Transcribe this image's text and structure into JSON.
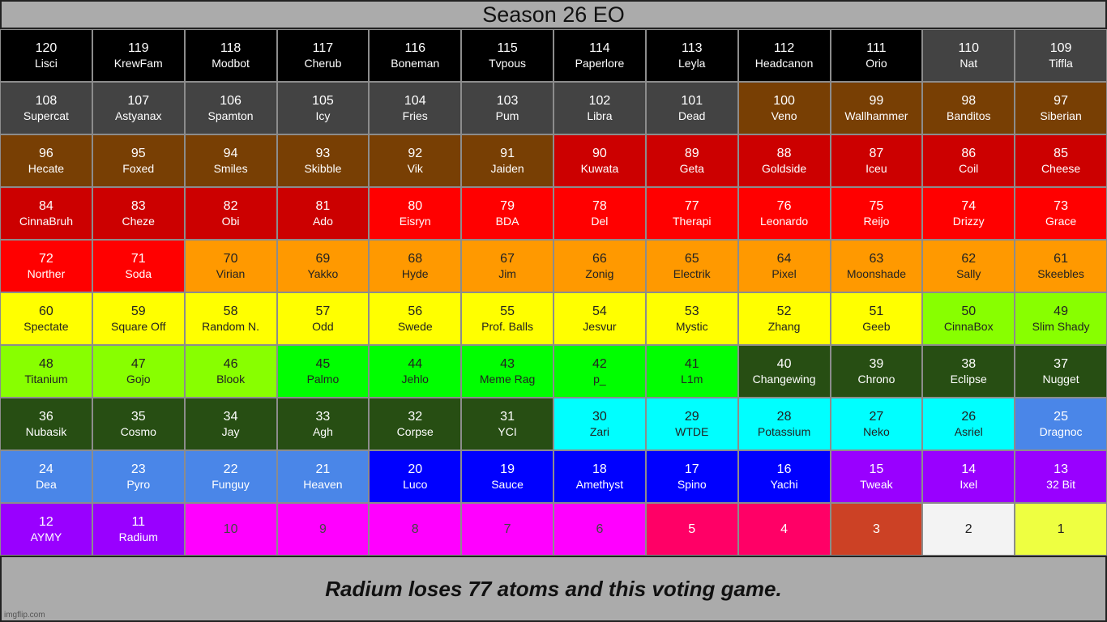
{
  "title": "Season 26 EO",
  "footer": "Radium loses 77 atoms and this voting game.",
  "watermark": "imgflip.com",
  "colors": {
    "black": "#000000",
    "gray": "#434343",
    "brown": "#783f04",
    "darkred": "#cc0000",
    "red": "#ff0000",
    "orange": "#ff9900",
    "yellow": "#ffff00",
    "lime": "#88ff00",
    "green": "#00ff00",
    "darkgreen": "#274e13",
    "cyan": "#00ffff",
    "cornflower": "#4a86e8",
    "blue": "#0000ff",
    "purple": "#9900ff",
    "magenta": "#ff00ff",
    "crimson": "#ff0066",
    "rust": "#cc4125",
    "white": "#f3f3f3",
    "paleyellow": "#eeff41"
  },
  "cells": [
    {
      "num": "120",
      "name": "Lisci",
      "c": "black"
    },
    {
      "num": "119",
      "name": "KrewFam",
      "c": "black"
    },
    {
      "num": "118",
      "name": "Modbot",
      "c": "black"
    },
    {
      "num": "117",
      "name": "Cherub",
      "c": "black"
    },
    {
      "num": "116",
      "name": "Boneman",
      "c": "black"
    },
    {
      "num": "115",
      "name": "Tvpous",
      "c": "black"
    },
    {
      "num": "114",
      "name": "Paperlore",
      "c": "black"
    },
    {
      "num": "113",
      "name": "Leyla",
      "c": "black"
    },
    {
      "num": "112",
      "name": "Headcanon",
      "c": "black"
    },
    {
      "num": "111",
      "name": "Orio",
      "c": "black"
    },
    {
      "num": "110",
      "name": "Nat",
      "c": "gray"
    },
    {
      "num": "109",
      "name": "Tiffla",
      "c": "gray"
    },
    {
      "num": "108",
      "name": "Supercat",
      "c": "gray"
    },
    {
      "num": "107",
      "name": "Astyanax",
      "c": "gray"
    },
    {
      "num": "106",
      "name": "Spamton",
      "c": "gray"
    },
    {
      "num": "105",
      "name": "Icy",
      "c": "gray"
    },
    {
      "num": "104",
      "name": "Fries",
      "c": "gray"
    },
    {
      "num": "103",
      "name": "Pum",
      "c": "gray"
    },
    {
      "num": "102",
      "name": "Libra",
      "c": "gray"
    },
    {
      "num": "101",
      "name": "Dead",
      "c": "gray"
    },
    {
      "num": "100",
      "name": "Veno",
      "c": "brown"
    },
    {
      "num": "99",
      "name": "Wallhammer",
      "c": "brown"
    },
    {
      "num": "98",
      "name": "Banditos",
      "c": "brown"
    },
    {
      "num": "97",
      "name": "Siberian",
      "c": "brown"
    },
    {
      "num": "96",
      "name": "Hecate",
      "c": "brown"
    },
    {
      "num": "95",
      "name": "Foxed",
      "c": "brown"
    },
    {
      "num": "94",
      "name": "Smiles",
      "c": "brown"
    },
    {
      "num": "93",
      "name": "Skibble",
      "c": "brown"
    },
    {
      "num": "92",
      "name": "Vik",
      "c": "brown"
    },
    {
      "num": "91",
      "name": "Jaiden",
      "c": "brown"
    },
    {
      "num": "90",
      "name": "Kuwata",
      "c": "darkred"
    },
    {
      "num": "89",
      "name": "Geta",
      "c": "darkred"
    },
    {
      "num": "88",
      "name": "Goldside",
      "c": "darkred"
    },
    {
      "num": "87",
      "name": "Iceu",
      "c": "darkred"
    },
    {
      "num": "86",
      "name": "Coil",
      "c": "darkred"
    },
    {
      "num": "85",
      "name": "Cheese",
      "c": "darkred"
    },
    {
      "num": "84",
      "name": "CinnaBruh",
      "c": "darkred"
    },
    {
      "num": "83",
      "name": "Cheze",
      "c": "darkred"
    },
    {
      "num": "82",
      "name": "Obi",
      "c": "darkred"
    },
    {
      "num": "81",
      "name": "Ado",
      "c": "darkred"
    },
    {
      "num": "80",
      "name": "Eisryn",
      "c": "red"
    },
    {
      "num": "79",
      "name": "BDA",
      "c": "red"
    },
    {
      "num": "78",
      "name": "Del",
      "c": "red"
    },
    {
      "num": "77",
      "name": "Therapi",
      "c": "red"
    },
    {
      "num": "76",
      "name": "Leonardo",
      "c": "red"
    },
    {
      "num": "75",
      "name": "Reijo",
      "c": "red"
    },
    {
      "num": "74",
      "name": "Drizzy",
      "c": "red"
    },
    {
      "num": "73",
      "name": "Grace",
      "c": "red"
    },
    {
      "num": "72",
      "name": "Norther",
      "c": "red"
    },
    {
      "num": "71",
      "name": "Soda",
      "c": "red"
    },
    {
      "num": "70",
      "name": "Virian",
      "c": "orange"
    },
    {
      "num": "69",
      "name": "Yakko",
      "c": "orange"
    },
    {
      "num": "68",
      "name": "Hyde",
      "c": "orange"
    },
    {
      "num": "67",
      "name": "Jim",
      "c": "orange"
    },
    {
      "num": "66",
      "name": "Zonig",
      "c": "orange"
    },
    {
      "num": "65",
      "name": "Electrik",
      "c": "orange"
    },
    {
      "num": "64",
      "name": "Pixel",
      "c": "orange"
    },
    {
      "num": "63",
      "name": "Moonshade",
      "c": "orange"
    },
    {
      "num": "62",
      "name": "Sally",
      "c": "orange"
    },
    {
      "num": "61",
      "name": "Skeebles",
      "c": "orange"
    },
    {
      "num": "60",
      "name": "Spectate",
      "c": "yellow"
    },
    {
      "num": "59",
      "name": "Square Off",
      "c": "yellow"
    },
    {
      "num": "58",
      "name": "Random N.",
      "c": "yellow"
    },
    {
      "num": "57",
      "name": "Odd",
      "c": "yellow"
    },
    {
      "num": "56",
      "name": "Swede",
      "c": "yellow"
    },
    {
      "num": "55",
      "name": "Prof. Balls",
      "c": "yellow"
    },
    {
      "num": "54",
      "name": "Jesvur",
      "c": "yellow"
    },
    {
      "num": "53",
      "name": "Mystic",
      "c": "yellow"
    },
    {
      "num": "52",
      "name": "Zhang",
      "c": "yellow"
    },
    {
      "num": "51",
      "name": "Geeb",
      "c": "yellow"
    },
    {
      "num": "50",
      "name": "CinnaBox",
      "c": "lime"
    },
    {
      "num": "49",
      "name": "Slim Shady",
      "c": "lime"
    },
    {
      "num": "48",
      "name": "Titanium",
      "c": "lime"
    },
    {
      "num": "47",
      "name": "Gojo",
      "c": "lime"
    },
    {
      "num": "46",
      "name": "Blook",
      "c": "lime"
    },
    {
      "num": "45",
      "name": "Palmo",
      "c": "green"
    },
    {
      "num": "44",
      "name": "Jehlo",
      "c": "green"
    },
    {
      "num": "43",
      "name": "Meme Rag",
      "c": "green"
    },
    {
      "num": "42",
      "name": "p_",
      "c": "green"
    },
    {
      "num": "41",
      "name": "L1m",
      "c": "green"
    },
    {
      "num": "40",
      "name": "Changewing",
      "c": "darkgreen"
    },
    {
      "num": "39",
      "name": "Chrono",
      "c": "darkgreen"
    },
    {
      "num": "38",
      "name": "Eclipse",
      "c": "darkgreen"
    },
    {
      "num": "37",
      "name": "Nugget",
      "c": "darkgreen"
    },
    {
      "num": "36",
      "name": "Nubasik",
      "c": "darkgreen"
    },
    {
      "num": "35",
      "name": "Cosmo",
      "c": "darkgreen"
    },
    {
      "num": "34",
      "name": "Jay",
      "c": "darkgreen"
    },
    {
      "num": "33",
      "name": "Agh",
      "c": "darkgreen"
    },
    {
      "num": "32",
      "name": "Corpse",
      "c": "darkgreen"
    },
    {
      "num": "31",
      "name": "YCI",
      "c": "darkgreen"
    },
    {
      "num": "30",
      "name": "Zari",
      "c": "cyan"
    },
    {
      "num": "29",
      "name": "WTDE",
      "c": "cyan"
    },
    {
      "num": "28",
      "name": "Potassium",
      "c": "cyan"
    },
    {
      "num": "27",
      "name": "Neko",
      "c": "cyan"
    },
    {
      "num": "26",
      "name": "Asriel",
      "c": "cyan"
    },
    {
      "num": "25",
      "name": "Dragnoc",
      "c": "cornflower"
    },
    {
      "num": "24",
      "name": "Dea",
      "c": "cornflower"
    },
    {
      "num": "23",
      "name": "Pyro",
      "c": "cornflower"
    },
    {
      "num": "22",
      "name": "Funguy",
      "c": "cornflower"
    },
    {
      "num": "21",
      "name": "Heaven",
      "c": "cornflower"
    },
    {
      "num": "20",
      "name": "Luco",
      "c": "blue"
    },
    {
      "num": "19",
      "name": "Sauce",
      "c": "blue"
    },
    {
      "num": "18",
      "name": "Amethyst",
      "c": "blue"
    },
    {
      "num": "17",
      "name": "Spino",
      "c": "blue"
    },
    {
      "num": "16",
      "name": "Yachi",
      "c": "blue"
    },
    {
      "num": "15",
      "name": "Tweak",
      "c": "purple"
    },
    {
      "num": "14",
      "name": "Ixel",
      "c": "purple"
    },
    {
      "num": "13",
      "name": "32 Bit",
      "c": "purple"
    },
    {
      "num": "12",
      "name": "AYMY",
      "c": "purple"
    },
    {
      "num": "11",
      "name": "Radium",
      "c": "purple"
    },
    {
      "num": "10",
      "name": "",
      "c": "magenta"
    },
    {
      "num": "9",
      "name": "",
      "c": "magenta"
    },
    {
      "num": "8",
      "name": "",
      "c": "magenta"
    },
    {
      "num": "7",
      "name": "",
      "c": "magenta"
    },
    {
      "num": "6",
      "name": "",
      "c": "magenta"
    },
    {
      "num": "5",
      "name": "",
      "c": "crimson"
    },
    {
      "num": "4",
      "name": "",
      "c": "crimson"
    },
    {
      "num": "3",
      "name": "",
      "c": "rust"
    },
    {
      "num": "2",
      "name": "",
      "c": "white"
    },
    {
      "num": "1",
      "name": "",
      "c": "paleyellow"
    }
  ]
}
